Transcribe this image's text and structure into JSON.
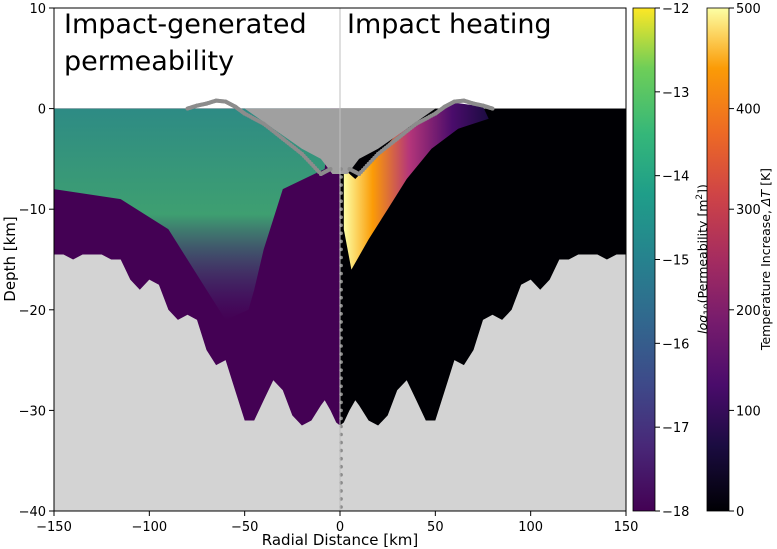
{
  "chart_data": {
    "type": "heatmap",
    "panels": {
      "left_label": [
        "Impact-generated",
        "permeability"
      ],
      "right_label": "Impact heating"
    },
    "xlabel": "Radial Distance [km]",
    "ylabel": "Depth [km]",
    "xlim": [
      -150,
      150
    ],
    "ylim": [
      -40,
      10
    ],
    "xticks": [
      "−150",
      "−100",
      "−50",
      "0",
      "50",
      "100",
      "150"
    ],
    "xtick_values": [
      -150,
      -100,
      -50,
      0,
      50,
      100,
      150
    ],
    "yticks": [
      "10",
      "0",
      "−10",
      "−20",
      "−30",
      "−40"
    ],
    "ytick_values": [
      10,
      0,
      -10,
      -20,
      -30,
      -40
    ],
    "crater_boundary": {
      "x": [
        0,
        2,
        5,
        8,
        10,
        15,
        20,
        25,
        30,
        35,
        40,
        45,
        50,
        55,
        60,
        65,
        70,
        75,
        80,
        85,
        90,
        95,
        100,
        105,
        110,
        115,
        120,
        125,
        130,
        135,
        140,
        145,
        150
      ],
      "depth": [
        -31.5,
        -31.2,
        -30,
        -29,
        -29.5,
        -31,
        -31.5,
        -30.5,
        -28,
        -27,
        -29,
        -31,
        -31,
        -28,
        -25,
        -25.5,
        -24,
        -21,
        -20.5,
        -21,
        -20,
        -17.5,
        -17,
        -18,
        -17,
        -15,
        -15,
        -14.5,
        -14.5,
        -14.5,
        -15,
        -14.5,
        -14.5
      ]
    },
    "transient_rim": {
      "x": [
        5,
        10,
        20,
        30,
        40,
        50,
        55,
        60,
        65,
        70,
        75,
        80
      ],
      "depth": [
        -6,
        -6.5,
        -4.5,
        -3,
        -1.5,
        -0.5,
        0.2,
        0.7,
        0.8,
        0.5,
        0.3,
        0
      ]
    },
    "permeability_colorbar": {
      "label_prefix": "log",
      "label_sub": "10",
      "label_main": "(Permeability [m",
      "label_sup": "2",
      "label_end": "])",
      "range": [
        -18,
        -12
      ],
      "ticks": [
        "−12",
        "−13",
        "−14",
        "−15",
        "−16",
        "−17",
        "−18"
      ],
      "tick_values": [
        -12,
        -13,
        -14,
        -15,
        -16,
        -17,
        -18
      ],
      "colormap": "viridis"
    },
    "temperature_colorbar": {
      "label": "Temperature Increase, ",
      "label_symbol": "ΔT",
      "label_unit": " [K]",
      "range": [
        0,
        500
      ],
      "ticks": [
        "500",
        "400",
        "300",
        "200",
        "100",
        "0"
      ],
      "tick_values": [
        500,
        400,
        300,
        200,
        100,
        0
      ],
      "colormap": "inferno"
    },
    "colors": {
      "background_rock": "#d3d3d3",
      "crater_fill": "#a0a0a0",
      "tracer_points": "#8c8c8c",
      "perm_base": "#440154",
      "temp_base": "#000004"
    }
  }
}
